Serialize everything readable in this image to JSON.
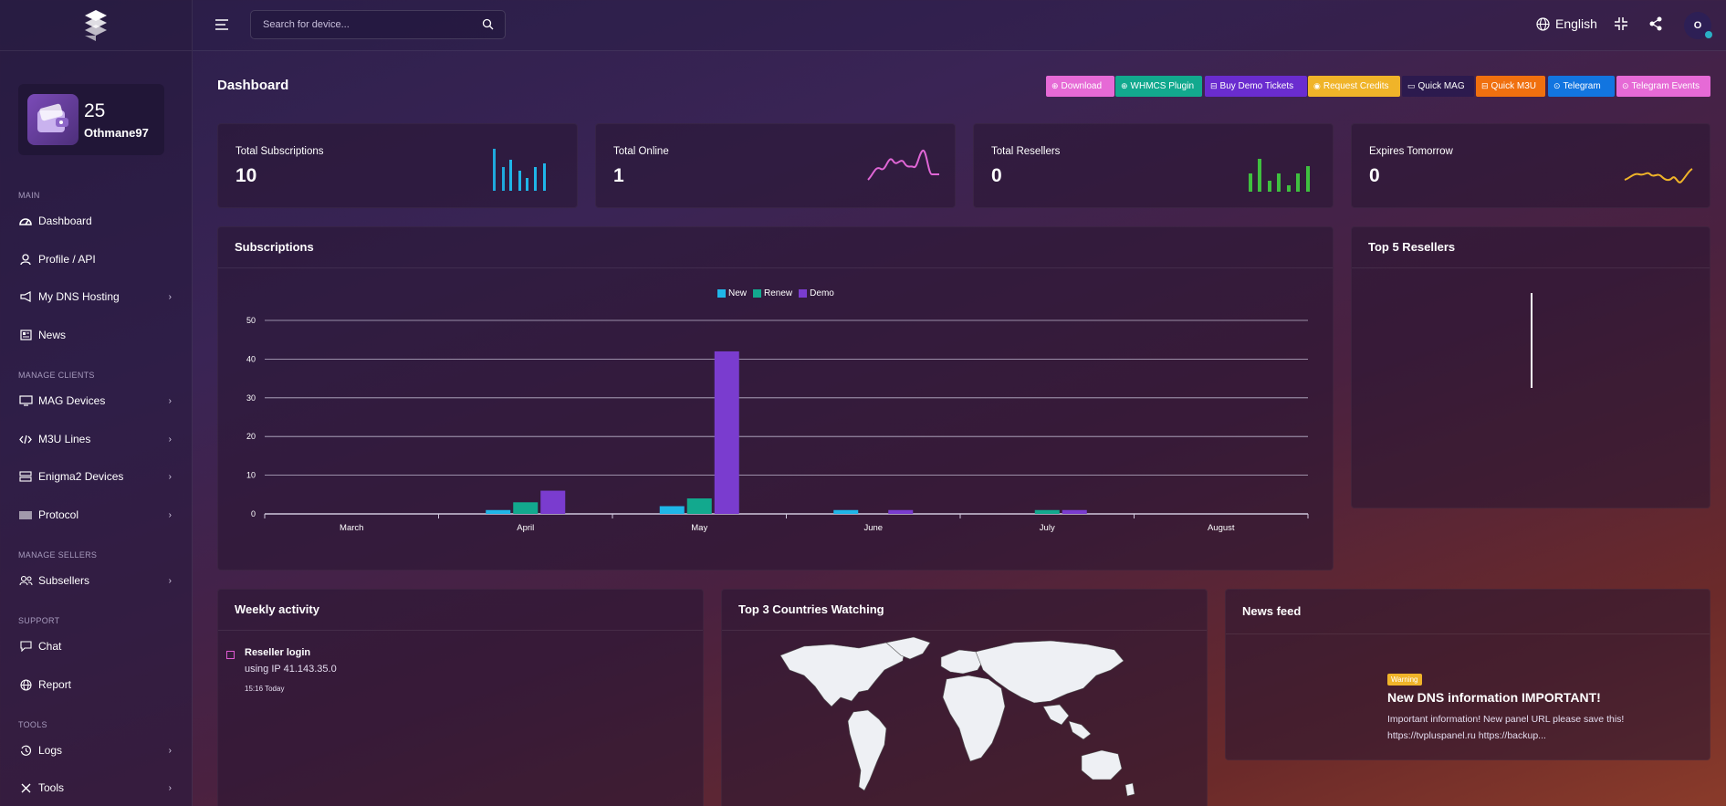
{
  "search": {
    "placeholder": "Search for device..."
  },
  "topbar": {
    "language": "English",
    "avatar_initial": "O"
  },
  "wallet": {
    "credits": "25",
    "username": "Othmane97"
  },
  "sidebar": {
    "sections": [
      "MAIN",
      "MANAGE CLIENTS",
      "MANAGE SELLERS",
      "SUPPORT",
      "TOOLS"
    ],
    "items": [
      {
        "label": "Dashboard",
        "icon": "dashboard-icon"
      },
      {
        "label": "Profile / API",
        "icon": "user-icon"
      },
      {
        "label": "My DNS Hosting",
        "icon": "megaphone-icon"
      },
      {
        "label": "News",
        "icon": "newspaper-icon"
      },
      {
        "label": "MAG Devices",
        "icon": "monitor-icon"
      },
      {
        "label": "M3U Lines",
        "icon": "code-icon"
      },
      {
        "label": "Enigma2 Devices",
        "icon": "server-icon"
      },
      {
        "label": "Protocol",
        "icon": "barcode-icon"
      },
      {
        "label": "Subsellers",
        "icon": "users-icon"
      },
      {
        "label": "Chat",
        "icon": "chat-icon"
      },
      {
        "label": "Report",
        "icon": "globe-icon"
      },
      {
        "label": "Logs",
        "icon": "history-icon"
      },
      {
        "label": "Tools",
        "icon": "tools-icon"
      }
    ]
  },
  "page": {
    "title": "Dashboard"
  },
  "actions": [
    {
      "label": "Download",
      "color": "#e66ad6"
    },
    {
      "label": "WHMCS Plugin",
      "color": "#12a98e"
    },
    {
      "label": "Buy Demo Tickets",
      "color": "#6a2ccf"
    },
    {
      "label": "Request Credits",
      "color": "#f0b429"
    },
    {
      "label": "Quick MAG",
      "color": "#2c1a4e"
    },
    {
      "label": "Quick M3U",
      "color": "#f0700f"
    },
    {
      "label": "Telegram",
      "color": "#1275e0"
    },
    {
      "label": "Telegram Events",
      "color": "#e66ad6"
    }
  ],
  "stats": [
    {
      "label": "Total Subscriptions",
      "value": "10"
    },
    {
      "label": "Total Online",
      "value": "1"
    },
    {
      "label": "Total Resellers",
      "value": "0"
    },
    {
      "label": "Expires Tomorrow",
      "value": "0"
    }
  ],
  "subscriptions": {
    "title": "Subscriptions"
  },
  "top_resellers": {
    "title": "Top 5 Resellers"
  },
  "weekly": {
    "title": "Weekly activity",
    "event_title": "Reseller login",
    "event_detail": "using IP 41.143.35.0",
    "event_time": "15:16 Today"
  },
  "countries": {
    "title": "Top 3 Countries Watching"
  },
  "news": {
    "title": "News feed",
    "badge": "Warning",
    "headline": "New DNS information IMPORTANT!",
    "body1": "Important information! New panel URL please save this!",
    "body2": "https://tvpluspanel.ru https://backup..."
  },
  "chart_data": {
    "type": "bar",
    "categories": [
      "March",
      "April",
      "May",
      "June",
      "July",
      "August"
    ],
    "series": [
      {
        "name": "New",
        "color": "#1fb6e8",
        "values": [
          0,
          1,
          2,
          1,
          0,
          0
        ]
      },
      {
        "name": "Renew",
        "color": "#12a98e",
        "values": [
          0,
          3,
          4,
          0,
          1,
          0
        ]
      },
      {
        "name": "Demo",
        "color": "#7a3ccf",
        "values": [
          0,
          6,
          42,
          1,
          1,
          0
        ]
      }
    ],
    "yticks": [
      0,
      10,
      20,
      30,
      40,
      50
    ],
    "ylim": [
      0,
      50
    ],
    "grid": true,
    "legend": "top-center"
  }
}
